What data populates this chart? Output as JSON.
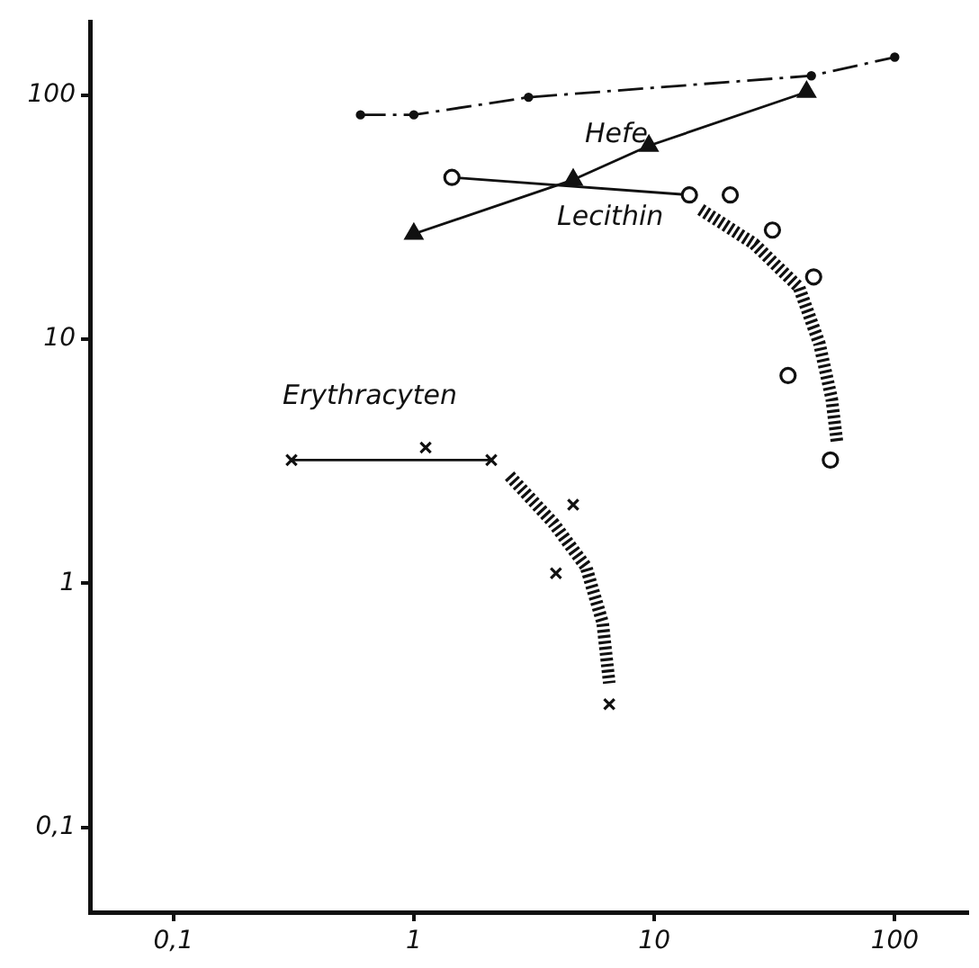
{
  "chart_data": {
    "type": "scatter",
    "log": "xy",
    "xlim": [
      0.045,
      200
    ],
    "ylim": [
      0.045,
      200
    ],
    "xticks": [
      {
        "value": 0.1,
        "label": "0,1"
      },
      1,
      10,
      100
    ],
    "yticks": [
      {
        "value": 0.1,
        "label": "0,1"
      },
      1,
      10,
      100
    ],
    "legend": false,
    "series": [
      {
        "type": "line",
        "color": "#111111",
        "marker": "circle",
        "line_style": "dashed",
        "x": [
          0.6,
          1.0,
          3.0,
          45,
          100
        ],
        "values": [
          83,
          83,
          98,
          120,
          143
        ]
      },
      {
        "type": "line",
        "name": "Hefe",
        "color": "#111111",
        "marker": "triangle",
        "line_style": "solid",
        "x": [
          1,
          4.6,
          9.5,
          43
        ],
        "values": [
          27,
          45,
          62,
          103
        ]
      },
      {
        "type": "scatter",
        "name": "Lecithin",
        "color": "#111111",
        "marker": "circle",
        "x": [
          1.44,
          14,
          20.7,
          31,
          46,
          36,
          54
        ],
        "values": [
          46,
          39,
          39,
          28,
          18,
          7.1,
          3.2
        ]
      },
      {
        "type": "scatter",
        "name": "Erythracyten",
        "color": "#111111",
        "marker": "cross",
        "x": [
          0.31,
          1.12,
          2.1,
          4.6,
          3.9,
          6.5
        ],
        "values": [
          3.2,
          3.6,
          3.2,
          2.1,
          1.1,
          0.32
        ]
      },
      {
        "type": "line",
        "color": "#111111",
        "marker": "none",
        "line_style": "solid",
        "x": [
          1.44,
          14
        ],
        "values": [
          46,
          39
        ]
      },
      {
        "type": "line",
        "color": "#111111",
        "marker": "none",
        "line_style": "solid",
        "x": [
          0.31,
          2.1
        ],
        "values": [
          3.2,
          3.2
        ]
      },
      {
        "type": "line",
        "color": "#111111",
        "marker": "none",
        "line_style": "dotted",
        "x": [
          15.6,
          26,
          40,
          48.6,
          54.7,
          57.5
        ],
        "values": [
          34,
          24.6,
          16.3,
          9.6,
          5.7,
          3.8
        ]
      },
      {
        "type": "line",
        "color": "#111111",
        "marker": "none",
        "line_style": "dotted",
        "x": [
          2.5,
          3.8,
          5.2,
          6.1,
          6.5
        ],
        "values": [
          2.76,
          1.77,
          1.17,
          0.69,
          0.39
        ]
      }
    ]
  }
}
